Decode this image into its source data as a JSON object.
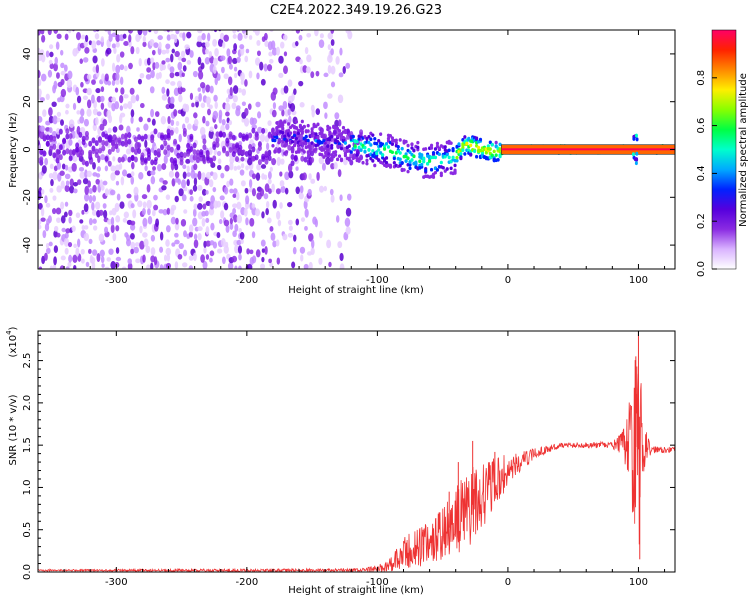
{
  "title": "C2E4.2022.349.19.26.G23",
  "chart_data": [
    {
      "type": "heatmap",
      "title": "C2E4.2022.349.19.26.G23",
      "xlabel": "Height of straight line (km)",
      "ylabel": "Frequency (Hz)",
      "xlim": [
        -360,
        128
      ],
      "ylim": [
        -50,
        50
      ],
      "xticks": [
        -300,
        -200,
        -100,
        0,
        100
      ],
      "yticks": [
        -40,
        -20,
        0,
        20,
        40
      ],
      "colorbar": {
        "label": "Normalized spectral amplitude",
        "ticks": [
          "0.0",
          "0.2",
          "0.4",
          "0.6",
          "0.8"
        ],
        "range": [
          0,
          1
        ],
        "colors": [
          "#ffffff",
          "#d9b3ff",
          "#8a2be2",
          "#5500dd",
          "#0022ff",
          "#00aaff",
          "#00ffcc",
          "#00ff44",
          "#88ff00",
          "#ffee00",
          "#ff8800",
          "#ff2200",
          "#ff0066"
        ]
      },
      "ridge": {
        "x": [
          -180,
          -160,
          -140,
          -120,
          -110,
          -100,
          -90,
          -80,
          -70,
          -60,
          -50,
          -40,
          -35,
          -30,
          -20,
          -10,
          0,
          20,
          50,
          80,
          95,
          100,
          128
        ],
        "y": [
          5,
          5,
          3,
          2,
          1,
          0,
          -1,
          -3,
          -4,
          -5,
          -4,
          -3,
          1,
          2,
          0,
          -1,
          0,
          0,
          0,
          0,
          0,
          0,
          0
        ]
      }
    },
    {
      "type": "line",
      "xlabel": "Height of straight line (km)",
      "ylabel": "SNR (10 * v/v)",
      "multiplier": "(x10",
      "multiplier_exp": "4",
      "xlim": [
        -360,
        128
      ],
      "ylim": [
        0,
        2.85
      ],
      "xticks": [
        -300,
        -200,
        -100,
        0,
        100
      ],
      "yticks": [
        "0.0",
        "0.5",
        "1.0",
        "1.5",
        "2.0",
        "2.5"
      ],
      "line_color": "#ee3333",
      "envelope": {
        "x": [
          -360,
          -120,
          -100,
          -90,
          -75,
          -60,
          -50,
          -40,
          -30,
          -20,
          -10,
          0,
          10,
          20,
          30,
          40,
          60,
          80,
          90,
          95,
          100,
          103,
          106,
          110,
          128
        ],
        "y": [
          0.02,
          0.02,
          0.03,
          0.08,
          0.25,
          0.35,
          0.45,
          0.6,
          0.75,
          0.9,
          1.05,
          1.2,
          1.3,
          1.4,
          1.45,
          1.5,
          1.5,
          1.5,
          1.52,
          1.52,
          1.45,
          1.48,
          1.45,
          1.45,
          1.45
        ]
      },
      "noise": {
        "x": [
          -360,
          -110,
          -90,
          -75,
          -60,
          -45,
          -35,
          -25,
          -15,
          -5,
          5,
          20,
          40,
          80,
          88,
          92,
          96,
          100,
          104,
          110,
          128
        ],
        "amp": [
          0.01,
          0.02,
          0.1,
          0.25,
          0.25,
          0.35,
          0.45,
          0.45,
          0.35,
          0.25,
          0.15,
          0.06,
          0.03,
          0.04,
          0.15,
          0.4,
          0.9,
          1.3,
          0.3,
          0.05,
          0.03
        ]
      },
      "spikes": [
        {
          "x": -65,
          "y": 0.5
        },
        {
          "x": -45,
          "y": 0.95
        },
        {
          "x": -38,
          "y": 1.3
        },
        {
          "x": -27,
          "y": 1.55
        },
        {
          "x": -10,
          "y": 1.42
        },
        {
          "x": 98,
          "y": 2.55
        },
        {
          "x": 100,
          "y": 2.85
        },
        {
          "x": 101,
          "y": 0.15
        }
      ]
    }
  ]
}
